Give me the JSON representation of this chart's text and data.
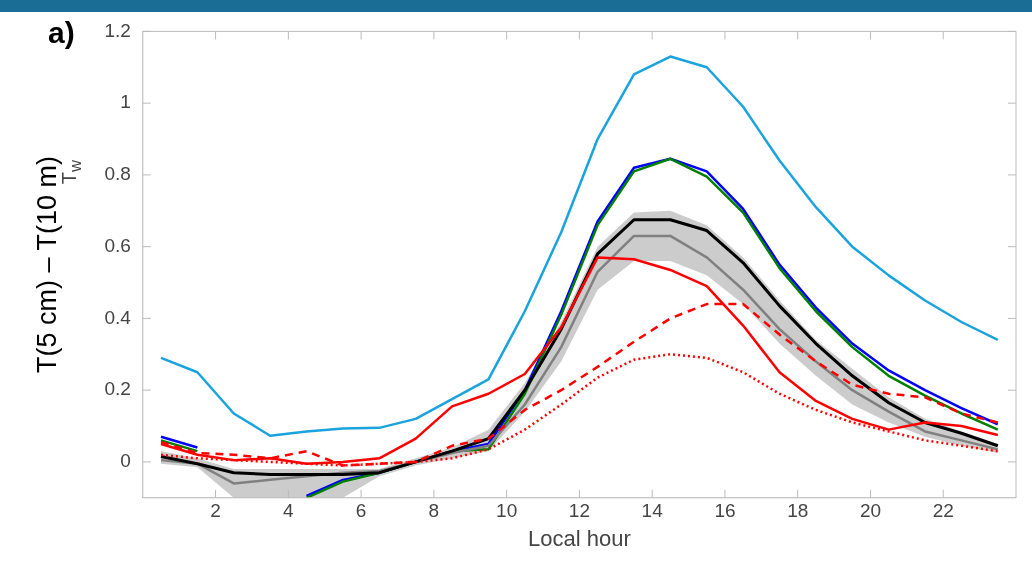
{
  "chart_data": {
    "type": "line",
    "ylabel": "T(5 cm) – T(10 m)",
    "xlabel": "Local hour",
    "annotations": [
      "a)",
      "T$_{w}$"
    ],
    "x": [
      0.5,
      1.5,
      2.5,
      3.5,
      4.5,
      5.5,
      6.5,
      7.5,
      8.5,
      9.5,
      10.5,
      11.5,
      12.5,
      13.5,
      14.5,
      15.5,
      16.5,
      17.5,
      18.5,
      19.5,
      20.5,
      21.5,
      22.5,
      23.5
    ],
    "xlim": [
      0,
      24
    ],
    "xticks": [
      2,
      4,
      6,
      8,
      10,
      12,
      14,
      16,
      18,
      20,
      22
    ],
    "ylim": [
      -0.1,
      1.2
    ],
    "yticks": [
      0,
      0.2,
      0.4,
      0.6,
      0.8,
      1,
      1.2
    ],
    "grid": false,
    "legend": false,
    "marker": "none",
    "series": [
      {
        "color": "#1aa3dd",
        "values": [
          0.29,
          0.25,
          0.135,
          0.073,
          0.085,
          0.093,
          0.095,
          0.12,
          0.175,
          0.23,
          0.42,
          0.64,
          0.9,
          1.08,
          1.13,
          1.1,
          0.99,
          0.84,
          0.71,
          0.6,
          0.52,
          0.45,
          0.39,
          0.34
        ]
      },
      {
        "color": "#0000ff",
        "values": [
          0.07,
          0.04,
          null,
          null,
          -0.095,
          -0.05,
          -0.03,
          0.0,
          0.03,
          0.05,
          0.2,
          0.42,
          0.67,
          0.82,
          0.845,
          0.81,
          0.705,
          0.55,
          0.43,
          0.33,
          0.255,
          0.2,
          0.15,
          0.105
        ]
      },
      {
        "color": "#008000",
        "values": [
          0.06,
          0.03,
          null,
          null,
          -0.1,
          -0.055,
          -0.03,
          0.0,
          0.03,
          0.035,
          0.19,
          0.41,
          0.66,
          0.81,
          0.845,
          0.795,
          0.695,
          0.54,
          0.42,
          0.32,
          0.24,
          0.185,
          0.135,
          0.09
        ]
      },
      {
        "color": "#808080",
        "values": [
          0.005,
          -0.005,
          -0.06,
          -0.05,
          -0.04,
          -0.03,
          -0.025,
          0.0,
          0.025,
          0.045,
          0.16,
          0.32,
          0.53,
          0.63,
          0.63,
          0.57,
          0.48,
          0.37,
          0.28,
          0.2,
          0.14,
          0.085,
          0.06,
          0.035
        ],
        "lower": [
          -0.005,
          -0.015,
          -0.1,
          -0.1,
          -0.1,
          -0.1,
          -0.04,
          -0.01,
          0.01,
          0.03,
          0.14,
          0.28,
          0.48,
          0.56,
          0.56,
          0.52,
          0.44,
          0.33,
          0.24,
          0.16,
          0.11,
          0.07,
          0.045,
          0.025
        ],
        "upper": [
          0.03,
          0.01,
          -0.02,
          -0.02,
          -0.02,
          -0.02,
          -0.02,
          0.01,
          0.04,
          0.09,
          0.22,
          0.39,
          0.6,
          0.695,
          0.7,
          0.66,
          0.57,
          0.45,
          0.34,
          0.26,
          0.18,
          0.12,
          0.085,
          0.05
        ]
      },
      {
        "color": "#000000",
        "values": [
          0.015,
          -0.005,
          -0.03,
          -0.035,
          -0.035,
          -0.035,
          -0.03,
          0.0,
          0.03,
          0.065,
          0.2,
          0.37,
          0.58,
          0.675,
          0.675,
          0.645,
          0.555,
          0.435,
          0.33,
          0.24,
          0.165,
          0.11,
          0.08,
          0.045
        ]
      },
      {
        "color": "#ff0000",
        "values": [
          0.05,
          0.02,
          0.005,
          0.01,
          -0.005,
          0.0,
          0.01,
          0.065,
          0.155,
          0.19,
          0.245,
          0.375,
          0.57,
          0.565,
          0.535,
          0.49,
          0.38,
          0.25,
          0.17,
          0.12,
          0.09,
          0.11,
          0.1,
          0.075
        ]
      },
      {
        "color": "#ff0000",
        "line_style": "dashed",
        "values": [
          0.055,
          0.025,
          0.02,
          0.01,
          0.03,
          -0.01,
          -0.005,
          0.0,
          0.045,
          0.065,
          0.145,
          0.2,
          0.265,
          0.335,
          0.4,
          0.44,
          0.44,
          0.355,
          0.28,
          0.215,
          0.19,
          0.18,
          0.135,
          0.11
        ]
      },
      {
        "color": "#ff0000",
        "line_style": "dotted",
        "values": [
          0.02,
          0.01,
          0.005,
          0.0,
          -0.005,
          -0.01,
          -0.005,
          0.0,
          0.01,
          0.035,
          0.09,
          0.16,
          0.235,
          0.285,
          0.3,
          0.29,
          0.25,
          0.19,
          0.145,
          0.11,
          0.085,
          0.06,
          0.045,
          0.03
        ]
      }
    ]
  }
}
